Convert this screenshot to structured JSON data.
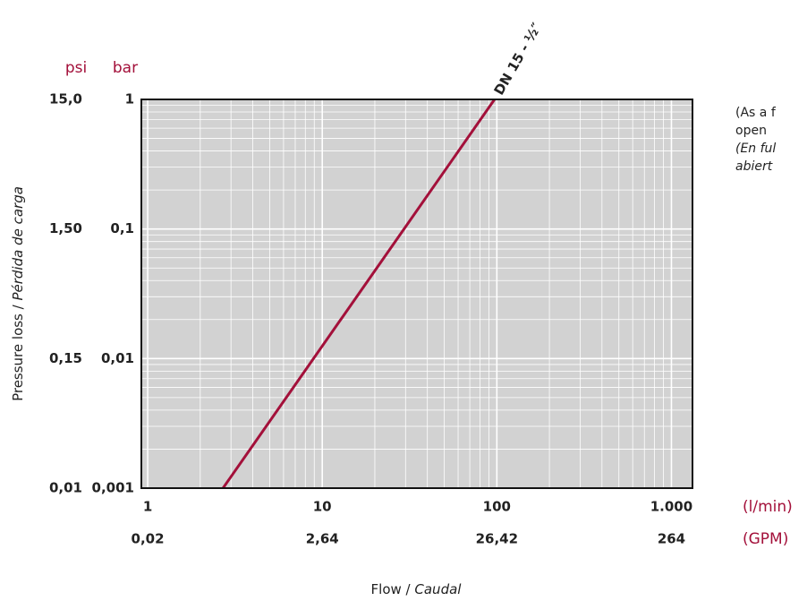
{
  "chart_data": {
    "type": "line",
    "x_label": [
      "Flow / ",
      "Caudal"
    ],
    "y_label": [
      "Pressure loss / ",
      "Pérdida de carga"
    ],
    "x_unit": "(l/min)",
    "x2_unit": "(GPM)",
    "y_unit": "bar",
    "y2_unit": "psi",
    "log_x": true,
    "log_y": true,
    "grid": true,
    "xlim": [
      0.92,
      1320
    ],
    "ylim": [
      0.001,
      1
    ],
    "xticks": [
      1,
      10,
      100,
      {
        "value": 1000,
        "label": "1.000"
      }
    ],
    "x2ticks": [
      {
        "value": 0.02,
        "label": "0,02"
      },
      {
        "value": 2.64,
        "label": "2,64"
      },
      {
        "value": 26.42,
        "label": "26,42"
      },
      264
    ],
    "yticks": [
      {
        "value": 0.001,
        "label": "0,001"
      },
      {
        "value": 0.01,
        "label": "0,01"
      },
      {
        "value": 0.1,
        "label": "0,1"
      },
      1
    ],
    "y2ticks": [
      {
        "value": 0.01,
        "label": "0,01"
      },
      {
        "value": 0.15,
        "label": "0,15"
      },
      {
        "value": 1.5,
        "label": "1,50"
      },
      {
        "value": 15,
        "label": "15,0"
      }
    ],
    "series": [
      {
        "name": "DN 15 - ½″",
        "color": "#a3103a",
        "x": [
          2.7,
          97
        ],
        "values": [
          0.001,
          1
        ]
      }
    ],
    "annotations": [
      "(As a f",
      "open",
      "(En ful",
      "abiert"
    ]
  }
}
